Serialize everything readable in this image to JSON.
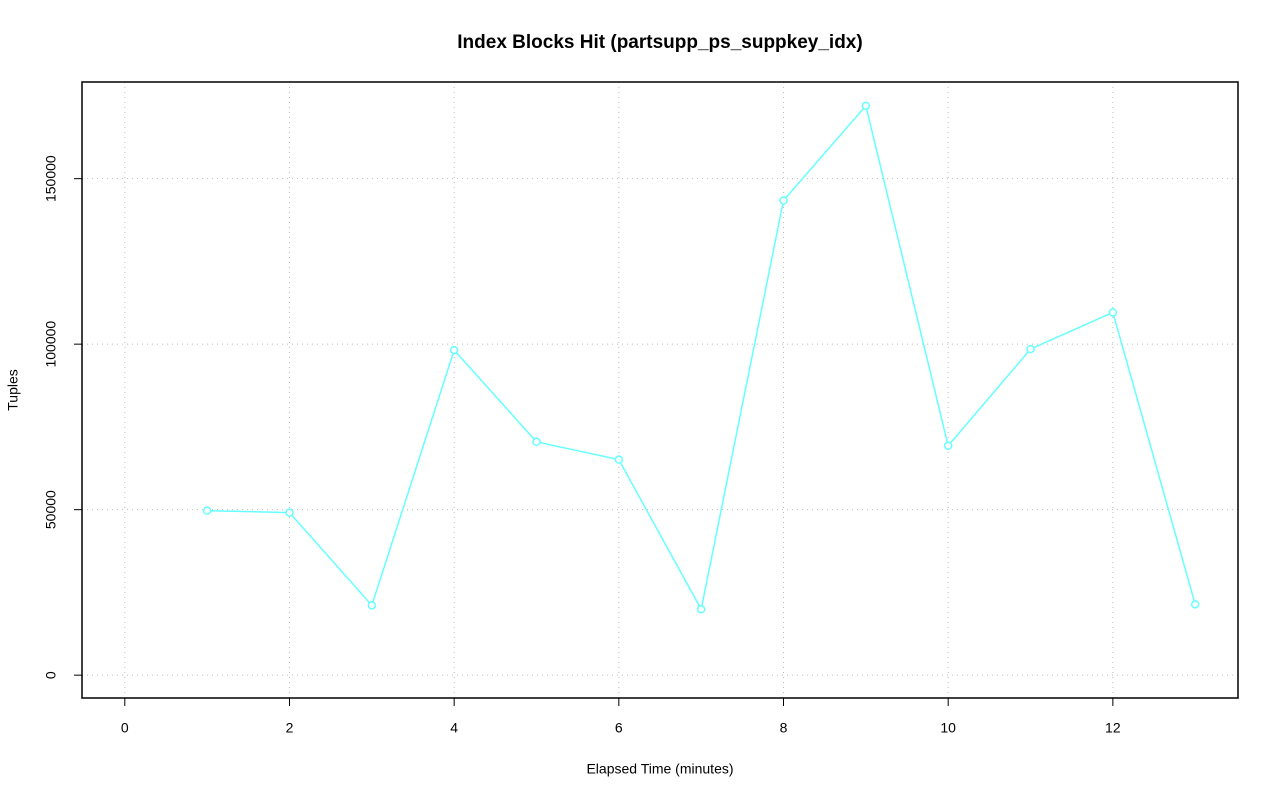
{
  "chart_data": {
    "type": "line",
    "title": "Index Blocks Hit (partsupp_ps_suppkey_idx)",
    "x_label": "Elapsed Time (minutes)",
    "y_label": "Tuples",
    "x": [
      1,
      2,
      3,
      4,
      5,
      6,
      7,
      8,
      9,
      10,
      11,
      12,
      13
    ],
    "series": [
      {
        "color": "#66ffff",
        "values": [
          49700,
          49100,
          21100,
          98200,
          70500,
          65100,
          19900,
          143400,
          172000,
          69300,
          98500,
          109600,
          21400
        ]
      }
    ],
    "xlim": [
      -0.52,
      13.52
    ],
    "xticks": [
      0,
      2,
      4,
      6,
      8,
      10,
      12
    ],
    "ylim": [
      -6900,
      179200
    ],
    "yticks": [
      0,
      50000,
      100000,
      150000
    ],
    "grid": true
  }
}
